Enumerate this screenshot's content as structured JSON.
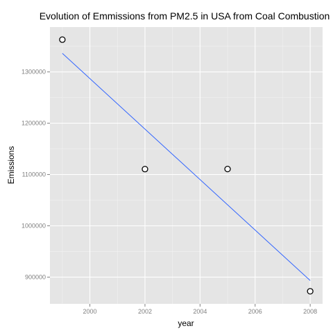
{
  "chart_data": {
    "type": "scatter",
    "title": "Evolution of Emmissions from PM2.5 in USA from Coal Combustion",
    "xlabel": "year",
    "ylabel": "Emissions",
    "x": [
      1999,
      2002,
      2005,
      2008
    ],
    "y": [
      1362900,
      1110500,
      1110700,
      872400
    ],
    "trend": {
      "type": "linear",
      "from": [
        1999,
        1336200
      ],
      "to": [
        2008,
        893300
      ]
    },
    "xticks": [
      2000,
      2002,
      2004,
      2006,
      2008
    ],
    "xtick_labels": [
      "2000",
      "2002",
      "2004",
      "2006",
      "2008"
    ],
    "yticks": [
      900000,
      1000000,
      1100000,
      1200000,
      1300000
    ],
    "ytick_labels": [
      "900000",
      "1000000",
      "1100000",
      "1200000",
      "1300000"
    ],
    "xlim": [
      1998.55,
      2008.45
    ],
    "ylim": [
      847850,
      1387450
    ],
    "grid": true,
    "legend": "none",
    "colors": {
      "panel": "#e5e5e5",
      "grid_major": "#ffffff",
      "grid_minor": "#f2f2f2",
      "trend_line": "#3366ff",
      "point_fill": "#ffffff",
      "point_stroke": "#000000",
      "tick_text": "#7f7f7f"
    }
  }
}
